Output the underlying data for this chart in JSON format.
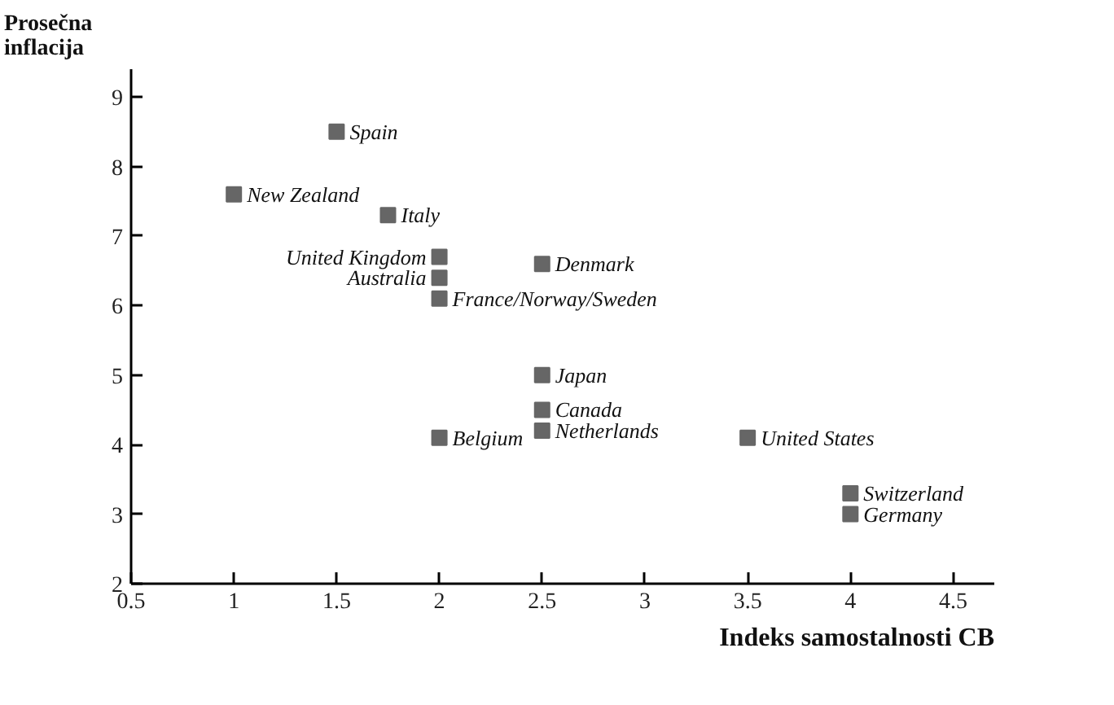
{
  "chart_data": {
    "type": "scatter",
    "xlabel": "Indeks samostalnosti CB",
    "ylabel": "Prosečna inflacija",
    "x": [
      1.5,
      1,
      1.75,
      2,
      2,
      2,
      2.5,
      2.5,
      2.5,
      2.5,
      2,
      3.5,
      4,
      4
    ],
    "series": [
      {
        "color": "#666666",
        "values": [
          8.5,
          7.6,
          7.3,
          6.7,
          6.4,
          6.1,
          6.6,
          5.0,
          4.5,
          4.2,
          4.1,
          4.1,
          3.3,
          3.0
        ]
      }
    ],
    "annotations": [
      {
        "text": "Spain",
        "x": 1.5,
        "y": 8.5
      },
      {
        "text": "New Zealand",
        "x": 1,
        "y": 7.6
      },
      {
        "text": "Italy",
        "x": 1.75,
        "y": 7.3
      },
      {
        "text": "United Kingdom",
        "x": 2,
        "y": 6.7
      },
      {
        "text": "Australia",
        "x": 2,
        "y": 6.4
      },
      {
        "text": "France/Norway/Sweden",
        "x": 2,
        "y": 6.1
      },
      {
        "text": "Denmark",
        "x": 2.5,
        "y": 6.6
      },
      {
        "text": "Japan",
        "x": 2.5,
        "y": 5.0
      },
      {
        "text": "Canada",
        "x": 2.5,
        "y": 4.5
      },
      {
        "text": "Netherlands",
        "x": 2.5,
        "y": 4.2
      },
      {
        "text": "Belgium",
        "x": 2,
        "y": 4.1
      },
      {
        "text": "United States",
        "x": 3.5,
        "y": 4.1
      },
      {
        "text": "Switzerland",
        "x": 4,
        "y": 3.3
      },
      {
        "text": "Germany",
        "x": 4,
        "y": 3.0
      }
    ],
    "xlim": [
      0.5,
      4.7
    ],
    "ylim": [
      2,
      9.4
    ],
    "xticks": [
      0.5,
      1,
      1.5,
      2,
      2.5,
      3,
      3.5,
      4,
      4.5
    ],
    "yticks": [
      2,
      3,
      4,
      5,
      6,
      7,
      8,
      9
    ],
    "marker": "square",
    "grid": false
  }
}
